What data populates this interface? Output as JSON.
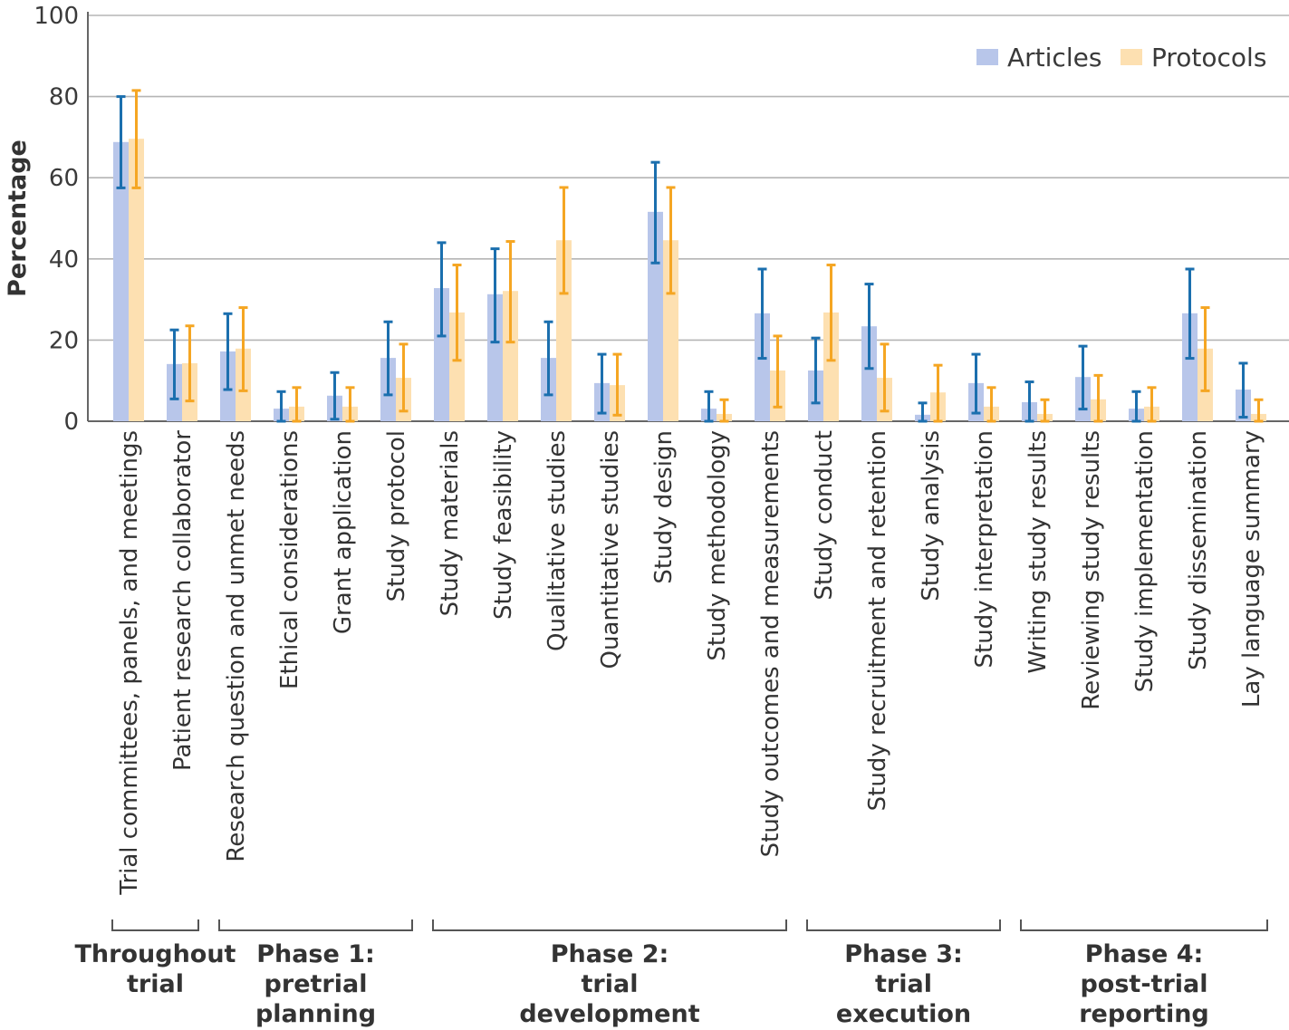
{
  "chart_data": {
    "type": "bar",
    "ylabel": "Percentage",
    "xlabel": "",
    "ylim": [
      0,
      100
    ],
    "yticks": [
      0,
      20,
      40,
      60,
      80,
      100
    ],
    "grid": true,
    "legend_position": "top-right",
    "categories": [
      "Trial committees, panels, and meetings",
      "Patient research collaborator",
      "Research question and unmet needs",
      "Ethical considerations",
      "Grant application",
      "Study protocol",
      "Study materials",
      "Study feasibility",
      "Qualitative studies",
      "Quantitative studies",
      "Study design",
      "Study methodology",
      "Study outcomes and measurements",
      "Study conduct",
      "Study recruitment and retention",
      "Study analysis",
      "Study interpretation",
      "Writing study results",
      "Reviewing study results",
      "Study implementation",
      "Study dissemination",
      "Lay language summary"
    ],
    "series": [
      {
        "name": "Articles",
        "color": "#b8c6ea",
        "error_color": "#1b6fae",
        "values": [
          68.8,
          14.1,
          17.2,
          3.1,
          6.3,
          15.6,
          32.8,
          31.3,
          15.6,
          9.4,
          51.6,
          3.1,
          26.6,
          12.5,
          23.4,
          1.6,
          9.4,
          4.7,
          10.9,
          3.1,
          26.6,
          7.8
        ],
        "lower": [
          57.5,
          5.5,
          7.8,
          0,
          0.5,
          6.5,
          21.0,
          19.5,
          6.5,
          2.0,
          39.0,
          0,
          15.5,
          4.5,
          13.0,
          0,
          2.0,
          0,
          3.0,
          0,
          15.5,
          1.0
        ],
        "upper": [
          80.0,
          22.5,
          26.5,
          7.3,
          12.0,
          24.5,
          44.0,
          42.5,
          24.5,
          16.5,
          63.8,
          7.3,
          37.5,
          20.5,
          33.8,
          4.5,
          16.5,
          9.7,
          18.5,
          7.3,
          37.5,
          14.3
        ]
      },
      {
        "name": "Protocols",
        "color": "#fde0b1",
        "error_color": "#f5a623",
        "values": [
          69.6,
          14.3,
          17.9,
          3.6,
          3.6,
          10.7,
          26.8,
          32.1,
          44.6,
          8.9,
          44.6,
          1.8,
          12.5,
          26.8,
          10.7,
          7.1,
          3.6,
          1.8,
          5.4,
          3.6,
          17.9,
          1.8
        ],
        "lower": [
          57.5,
          5.0,
          7.5,
          0,
          0,
          2.5,
          15.0,
          19.5,
          31.5,
          1.5,
          31.5,
          0,
          3.5,
          15.0,
          2.5,
          0,
          0,
          0,
          0,
          0,
          7.5,
          0
        ],
        "upper": [
          81.5,
          23.5,
          28.0,
          8.3,
          8.3,
          19.0,
          38.5,
          44.3,
          57.6,
          16.5,
          57.6,
          5.3,
          21.0,
          38.5,
          19.0,
          13.8,
          8.3,
          5.3,
          11.3,
          8.3,
          28.0,
          5.3
        ]
      }
    ],
    "groups": [
      {
        "label_lines": [
          "Throughout",
          "trial"
        ],
        "start": 0,
        "end": 1
      },
      {
        "label_lines": [
          "Phase 1:",
          "pretrial",
          "planning"
        ],
        "start": 2,
        "end": 5
      },
      {
        "label_lines": [
          "Phase 2:",
          "trial",
          "development"
        ],
        "start": 6,
        "end": 12
      },
      {
        "label_lines": [
          "Phase 3:",
          "trial",
          "execution"
        ],
        "start": 13,
        "end": 16
      },
      {
        "label_lines": [
          "Phase 4:",
          "post-trial",
          "reporting"
        ],
        "start": 17,
        "end": 21
      }
    ]
  }
}
